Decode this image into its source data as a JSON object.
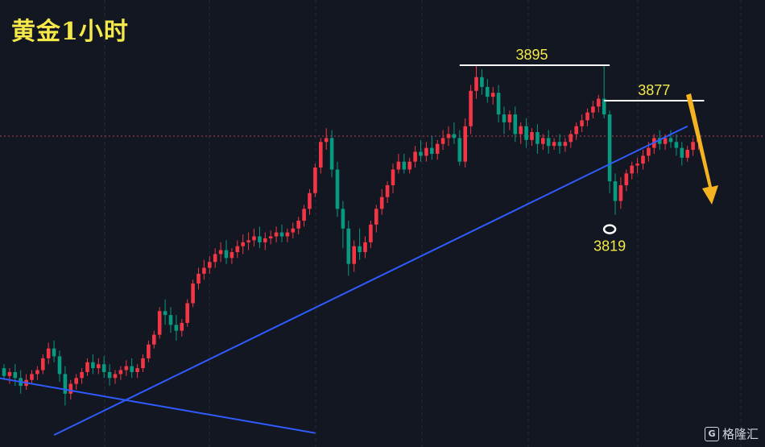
{
  "title": "黄金1小时",
  "watermark": {
    "icon": "G",
    "text": "格隆汇"
  },
  "colors": {
    "background": "#131722",
    "up": "#f23645",
    "down": "#089981",
    "trendline": "#2f5bff",
    "label": "#f5e84a",
    "level": "#ffffff",
    "arrow": "#f5b321"
  },
  "chart_data": {
    "type": "candlestick",
    "title": "黄金1小时",
    "ylim": [
      3705,
      3915
    ],
    "grid": true,
    "annotations": [
      {
        "label": "3895",
        "value": 3895,
        "kind": "resistance"
      },
      {
        "label": "3877",
        "value": 3877,
        "kind": "resistance"
      },
      {
        "label": "3819",
        "value": 3819,
        "kind": "low"
      }
    ],
    "candles": [
      [
        3741,
        3743,
        3737,
        3735
      ],
      [
        3737,
        3741,
        3739,
        3733
      ],
      [
        3739,
        3743,
        3736,
        3732
      ],
      [
        3736,
        3740,
        3732,
        3728
      ],
      [
        3732,
        3738,
        3735,
        3730
      ],
      [
        3735,
        3740,
        3738,
        3733
      ],
      [
        3738,
        3742,
        3740,
        3735
      ],
      [
        3740,
        3748,
        3746,
        3738
      ],
      [
        3746,
        3754,
        3751,
        3743
      ],
      [
        3751,
        3755,
        3747,
        3744
      ],
      [
        3747,
        3750,
        3738,
        3734
      ],
      [
        3738,
        3742,
        3728,
        3722
      ],
      [
        3728,
        3735,
        3733,
        3725
      ],
      [
        3733,
        3738,
        3736,
        3730
      ],
      [
        3736,
        3741,
        3739,
        3733
      ],
      [
        3739,
        3746,
        3744,
        3737
      ],
      [
        3744,
        3748,
        3741,
        3738
      ],
      [
        3741,
        3746,
        3743,
        3738
      ],
      [
        3743,
        3747,
        3739,
        3736
      ],
      [
        3739,
        3743,
        3736,
        3732
      ],
      [
        3736,
        3740,
        3738,
        3733
      ],
      [
        3738,
        3742,
        3740,
        3735
      ],
      [
        3740,
        3745,
        3742,
        3737
      ],
      [
        3742,
        3746,
        3739,
        3736
      ],
      [
        3739,
        3743,
        3741,
        3736
      ],
      [
        3741,
        3748,
        3746,
        3739
      ],
      [
        3746,
        3755,
        3753,
        3744
      ],
      [
        3753,
        3760,
        3758,
        3751
      ],
      [
        3758,
        3772,
        3770,
        3756
      ],
      [
        3770,
        3776,
        3768,
        3763
      ],
      [
        3768,
        3772,
        3763,
        3759
      ],
      [
        3763,
        3768,
        3760,
        3755
      ],
      [
        3760,
        3766,
        3764,
        3757
      ],
      [
        3764,
        3776,
        3774,
        3762
      ],
      [
        3774,
        3786,
        3784,
        3772
      ],
      [
        3784,
        3792,
        3789,
        3781
      ],
      [
        3789,
        3796,
        3792,
        3786
      ],
      [
        3792,
        3798,
        3795,
        3789
      ],
      [
        3795,
        3802,
        3799,
        3792
      ],
      [
        3799,
        3805,
        3801,
        3795
      ],
      [
        3801,
        3806,
        3797,
        3794
      ],
      [
        3797,
        3802,
        3800,
        3794
      ],
      [
        3800,
        3806,
        3803,
        3797
      ],
      [
        3803,
        3809,
        3805,
        3799
      ],
      [
        3805,
        3810,
        3806,
        3801
      ],
      [
        3806,
        3812,
        3808,
        3803
      ],
      [
        3808,
        3813,
        3805,
        3802
      ],
      [
        3805,
        3810,
        3807,
        3801
      ],
      [
        3807,
        3811,
        3808,
        3804
      ],
      [
        3808,
        3813,
        3810,
        3805
      ],
      [
        3810,
        3814,
        3808,
        3805
      ],
      [
        3808,
        3812,
        3810,
        3805
      ],
      [
        3810,
        3815,
        3812,
        3807
      ],
      [
        3812,
        3818,
        3816,
        3809
      ],
      [
        3816,
        3824,
        3822,
        3813
      ],
      [
        3822,
        3832,
        3830,
        3819
      ],
      [
        3830,
        3845,
        3843,
        3828
      ],
      [
        3843,
        3858,
        3856,
        3840
      ],
      [
        3856,
        3863,
        3858,
        3852
      ],
      [
        3858,
        3862,
        3842,
        3838
      ],
      [
        3842,
        3846,
        3822,
        3818
      ],
      [
        3822,
        3826,
        3812,
        3802
      ],
      [
        3812,
        3816,
        3794,
        3788
      ],
      [
        3794,
        3806,
        3803,
        3790
      ],
      [
        3803,
        3812,
        3800,
        3796
      ],
      [
        3800,
        3808,
        3805,
        3797
      ],
      [
        3805,
        3816,
        3814,
        3802
      ],
      [
        3814,
        3824,
        3822,
        3810
      ],
      [
        3822,
        3832,
        3828,
        3819
      ],
      [
        3828,
        3836,
        3834,
        3825
      ],
      [
        3834,
        3845,
        3842,
        3830
      ],
      [
        3842,
        3850,
        3846,
        3840
      ],
      [
        3846,
        3850,
        3842,
        3840
      ],
      [
        3842,
        3848,
        3846,
        3840
      ],
      [
        3846,
        3854,
        3851,
        3843
      ],
      [
        3851,
        3857,
        3849,
        3846
      ],
      [
        3849,
        3856,
        3853,
        3846
      ],
      [
        3853,
        3859,
        3850,
        3847
      ],
      [
        3850,
        3857,
        3855,
        3847
      ],
      [
        3855,
        3862,
        3858,
        3852
      ],
      [
        3858,
        3864,
        3860,
        3854
      ],
      [
        3860,
        3866,
        3858,
        3855
      ],
      [
        3858,
        3862,
        3846,
        3844
      ],
      [
        3846,
        3868,
        3864,
        3843
      ],
      [
        3864,
        3885,
        3882,
        3860
      ],
      [
        3882,
        3895,
        3889,
        3878
      ],
      [
        3889,
        3893,
        3884,
        3880
      ],
      [
        3884,
        3888,
        3879,
        3876
      ],
      [
        3879,
        3884,
        3881,
        3875
      ],
      [
        3881,
        3885,
        3870,
        3866
      ],
      [
        3870,
        3874,
        3866,
        3860
      ],
      [
        3866,
        3872,
        3870,
        3862
      ],
      [
        3870,
        3874,
        3860,
        3856
      ],
      [
        3860,
        3866,
        3864,
        3855
      ],
      [
        3864,
        3868,
        3857,
        3853
      ],
      [
        3857,
        3863,
        3861,
        3854
      ],
      [
        3861,
        3865,
        3855,
        3850
      ],
      [
        3855,
        3860,
        3858,
        3852
      ],
      [
        3858,
        3862,
        3854,
        3850
      ],
      [
        3854,
        3858,
        3856,
        3852
      ],
      [
        3856,
        3860,
        3854,
        3850
      ],
      [
        3854,
        3858,
        3856,
        3851
      ],
      [
        3856,
        3862,
        3860,
        3853
      ],
      [
        3860,
        3866,
        3864,
        3857
      ],
      [
        3864,
        3870,
        3867,
        3861
      ],
      [
        3867,
        3873,
        3871,
        3864
      ],
      [
        3871,
        3877,
        3874,
        3868
      ],
      [
        3874,
        3880,
        3878,
        3871
      ],
      [
        3878,
        3895,
        3870,
        3868
      ],
      [
        3870,
        3872,
        3836,
        3830
      ],
      [
        3836,
        3840,
        3826,
        3819
      ],
      [
        3826,
        3838,
        3834,
        3822
      ],
      [
        3834,
        3842,
        3840,
        3831
      ],
      [
        3840,
        3846,
        3844,
        3837
      ],
      [
        3844,
        3848,
        3845,
        3840
      ],
      [
        3845,
        3852,
        3849,
        3842
      ],
      [
        3849,
        3856,
        3853,
        3846
      ],
      [
        3853,
        3860,
        3858,
        3850
      ],
      [
        3858,
        3862,
        3855,
        3852
      ],
      [
        3855,
        3860,
        3858,
        3852
      ],
      [
        3858,
        3862,
        3856,
        3853
      ],
      [
        3856,
        3860,
        3853,
        3849
      ],
      [
        3853,
        3856,
        3848,
        3844
      ],
      [
        3848,
        3854,
        3852,
        3846
      ],
      [
        3852,
        3858,
        3856,
        3849
      ],
      [
        3856,
        3862,
        3859,
        3852
      ]
    ]
  }
}
